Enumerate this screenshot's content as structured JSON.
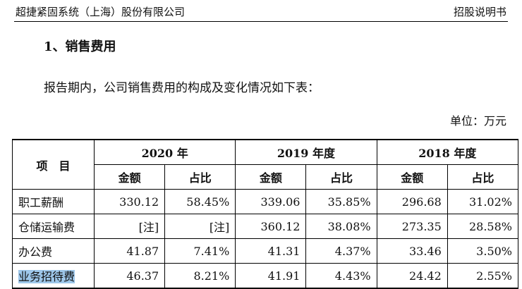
{
  "header": {
    "left": "超捷紧固系统（上海）股份有限公司",
    "right": "招股说明书"
  },
  "section_title": "1、销售费用",
  "paragraph": "报告期内，公司销售费用的构成及变化情况如下表：",
  "unit_note": "单位：万元",
  "table": {
    "item_header": "项　目",
    "years": [
      "2020 年",
      "2019 年度",
      "2018 年度"
    ],
    "sub_headers": {
      "amount": "金额",
      "ratio": "占比"
    },
    "rows": [
      {
        "name": "职工薪酬",
        "values": [
          "330.12",
          "58.45%",
          "339.06",
          "35.85%",
          "296.68",
          "31.02%"
        ]
      },
      {
        "name": "仓储运输费",
        "values": [
          "[注]",
          "[注]",
          "360.12",
          "38.08%",
          "273.35",
          "28.58%"
        ]
      },
      {
        "name": "办公费",
        "values": [
          "41.87",
          "7.41%",
          "41.31",
          "4.37%",
          "33.46",
          "3.50%"
        ]
      },
      {
        "name": "业务招待费",
        "values": [
          "46.37",
          "8.21%",
          "41.91",
          "4.43%",
          "24.42",
          "2.55%"
        ]
      }
    ]
  }
}
